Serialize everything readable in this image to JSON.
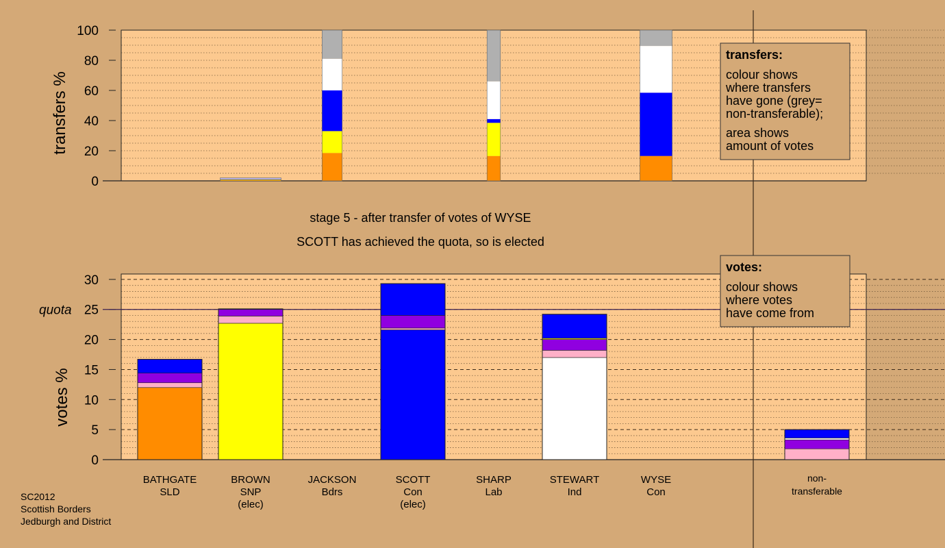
{
  "caption": {
    "stage": "stage 5 - after transfer of votes of WYSE",
    "status": "SCOTT has achieved the quota, so is elected"
  },
  "footer": [
    "SC2012",
    "Scottish Borders",
    "Jedburgh and District"
  ],
  "legend_transfers": {
    "title": "transfers:",
    "lines1": [
      "colour shows",
      "where transfers",
      "have gone (grey=",
      "non-transferable);"
    ],
    "lines2": [
      "area shows",
      "amount of votes"
    ]
  },
  "legend_votes": {
    "title": "votes:",
    "lines": [
      "colour shows",
      "where votes",
      "have come from"
    ]
  },
  "colors": {
    "background": "#d4a977",
    "plot_fill": "#fcc98f",
    "SLD": "#ff8c00",
    "SNP": "#ffff00",
    "Bdrs": "#ffb0c8",
    "Con": "#0000ff",
    "Lab": "#ff0000",
    "Ind": "#ffffff",
    "Con2": "#9000e0",
    "nontransferable": "#b0b0b0"
  },
  "chart_data": [
    {
      "type": "bar",
      "stacked": true,
      "ylabel": "transfers %",
      "ylim": [
        0,
        100
      ],
      "yticks": [
        0,
        20,
        40,
        60,
        80,
        100
      ],
      "categories": [
        "BATHGATE",
        "BROWN",
        "JACKSON",
        "SCOTT",
        "SHARP",
        "STEWART",
        "WYSE"
      ],
      "bars": [
        {
          "candidate": "BATHGATE",
          "width": 0,
          "segments": []
        },
        {
          "candidate": "BROWN",
          "width": 1.0,
          "segments": [
            {
              "color": "#ff8c00",
              "value": 0.5
            },
            {
              "color": "#ffff00",
              "value": 0.4
            },
            {
              "color": "#0000ff",
              "value": 0.4
            },
            {
              "color": "#ffffff",
              "value": 0.4
            },
            {
              "color": "#b0b0b0",
              "value": 0.3
            }
          ]
        },
        {
          "candidate": "JACKSON",
          "width": 0.33,
          "segments": [
            {
              "color": "#ff8c00",
              "value": 18.5
            },
            {
              "color": "#ffff00",
              "value": 14.5
            },
            {
              "color": "#0000ff",
              "value": 27
            },
            {
              "color": "#ffffff",
              "value": 21
            },
            {
              "color": "#b0b0b0",
              "value": 19
            }
          ]
        },
        {
          "candidate": "SCOTT",
          "width": 0,
          "segments": []
        },
        {
          "candidate": "SHARP",
          "width": 0.22,
          "segments": [
            {
              "color": "#ff8c00",
              "value": 16.5
            },
            {
              "color": "#ffff00",
              "value": 22
            },
            {
              "color": "#0000ff",
              "value": 2.5
            },
            {
              "color": "#ffffff",
              "value": 25
            },
            {
              "color": "#b0b0b0",
              "value": 34
            }
          ]
        },
        {
          "candidate": "STEWART",
          "width": 0,
          "segments": []
        },
        {
          "candidate": "WYSE",
          "width": 0.53,
          "segments": [
            {
              "color": "#ff8c00",
              "value": 16.5
            },
            {
              "color": "#0000ff",
              "value": 42
            },
            {
              "color": "#ffffff",
              "value": 31
            },
            {
              "color": "#b0b0b0",
              "value": 10.5
            }
          ]
        }
      ]
    },
    {
      "type": "bar",
      "stacked": true,
      "ylabel": "votes %",
      "ylim": [
        0,
        30
      ],
      "yticks": [
        0,
        5,
        10,
        15,
        20,
        25,
        30
      ],
      "quota": 25,
      "quota_label": "quota",
      "categories": [
        {
          "name": "BATHGATE",
          "party": "SLD",
          "note": ""
        },
        {
          "name": "BROWN",
          "party": "SNP",
          "note": "(elec)"
        },
        {
          "name": "JACKSON",
          "party": "Bdrs",
          "note": ""
        },
        {
          "name": "SCOTT",
          "party": "Con",
          "note": "(elec)"
        },
        {
          "name": "SHARP",
          "party": "Lab",
          "note": ""
        },
        {
          "name": "STEWART",
          "party": "Ind",
          "note": ""
        },
        {
          "name": "WYSE",
          "party": "Con",
          "note": ""
        }
      ],
      "nontransferable_label": [
        "non-",
        "transferable"
      ],
      "bars": [
        {
          "candidate": "BATHGATE",
          "segments": [
            {
              "color": "#ff8c00",
              "value": 12.0
            },
            {
              "color": "#ffb0c8",
              "value": 0.8
            },
            {
              "color": "#9000e0",
              "value": 1.6
            },
            {
              "color": "#0000ff",
              "value": 2.3
            }
          ]
        },
        {
          "candidate": "BROWN",
          "segments": [
            {
              "color": "#ffff00",
              "value": 22.7
            },
            {
              "color": "#ffb0c8",
              "value": 1.2
            },
            {
              "color": "#9000e0",
              "value": 1.1
            },
            {
              "color": "#0000ff",
              "value": 0.1
            }
          ]
        },
        {
          "candidate": "JACKSON",
          "segments": []
        },
        {
          "candidate": "SCOTT",
          "segments": [
            {
              "color": "#0000ff",
              "value": 21.6
            },
            {
              "color": "#ffb0c8",
              "value": 0.3
            },
            {
              "color": "#9000e0",
              "value": 2.1
            },
            {
              "color": "#0000ff",
              "value": 5.3
            }
          ]
        },
        {
          "candidate": "SHARP",
          "segments": []
        },
        {
          "candidate": "STEWART",
          "segments": [
            {
              "color": "#ffffff",
              "value": 17.0
            },
            {
              "color": "#ffb0c8",
              "value": 1.2
            },
            {
              "color": "#9000e0",
              "value": 1.8
            },
            {
              "color": "#ffff00",
              "value": 0.2
            },
            {
              "color": "#0000ff",
              "value": 4.0
            }
          ]
        },
        {
          "candidate": "WYSE",
          "segments": []
        },
        {
          "candidate": "non-transferable",
          "segments": [
            {
              "color": "#ffb0c8",
              "value": 1.8
            },
            {
              "color": "#9000e0",
              "value": 1.5
            },
            {
              "color": "#ffffff",
              "value": 0.3
            },
            {
              "color": "#0000ff",
              "value": 1.4
            }
          ]
        }
      ]
    }
  ]
}
